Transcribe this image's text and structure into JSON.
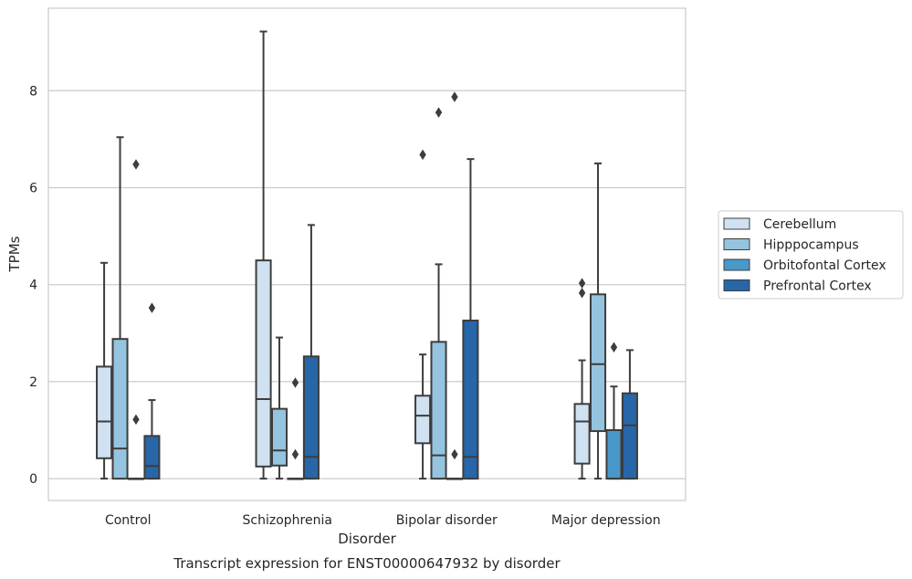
{
  "chart_data": {
    "type": "box",
    "title": "Transcript expression for ENST00000647932 by disorder",
    "xlabel": "Disorder",
    "ylabel": "TPMs",
    "ylim": [
      -0.45,
      9.7
    ],
    "yticks": [
      0,
      2,
      4,
      6,
      8
    ],
    "grid": "horizontal",
    "legend_position": "right",
    "categories": [
      "Control",
      "Schizophrenia",
      "Bipolar disorder",
      "Major depression"
    ],
    "series": [
      {
        "name": "Cerebellum",
        "color": "#d0e1f2",
        "boxes": [
          {
            "whisker_low": 0,
            "q1": 0.42,
            "median": 1.18,
            "q3": 2.31,
            "whisker_high": 4.45,
            "outliers": []
          },
          {
            "whisker_low": 0,
            "q1": 0.25,
            "median": 1.64,
            "q3": 4.5,
            "whisker_high": 9.22,
            "outliers": []
          },
          {
            "whisker_low": 0,
            "q1": 0.73,
            "median": 1.3,
            "q3": 1.71,
            "whisker_high": 2.56,
            "outliers": [
              6.68
            ]
          },
          {
            "whisker_low": 0,
            "q1": 0.31,
            "median": 1.18,
            "q3": 1.54,
            "whisker_high": 2.44,
            "outliers": [
              3.83,
              4.03
            ]
          }
        ]
      },
      {
        "name": "Hipppocampus",
        "color": "#94c4df",
        "boxes": [
          {
            "whisker_low": 0,
            "q1": 0,
            "median": 0.62,
            "q3": 2.88,
            "whisker_high": 7.04,
            "outliers": []
          },
          {
            "whisker_low": 0,
            "q1": 0.27,
            "median": 0.58,
            "q3": 1.44,
            "whisker_high": 2.91,
            "outliers": []
          },
          {
            "whisker_low": 0,
            "q1": 0,
            "median": 0.48,
            "q3": 2.82,
            "whisker_high": 4.42,
            "outliers": [
              7.55
            ]
          },
          {
            "whisker_low": 0,
            "q1": 0.98,
            "median": 2.36,
            "q3": 3.8,
            "whisker_high": 6.5,
            "outliers": []
          }
        ]
      },
      {
        "name": "Orbitofontal Cortex",
        "color": "#4a98c9",
        "boxes": [
          {
            "whisker_low": 0,
            "q1": 0,
            "median": 0,
            "q3": 0,
            "whisker_high": 0,
            "outliers": [
              1.22,
              6.48
            ]
          },
          {
            "whisker_low": 0,
            "q1": 0,
            "median": 0,
            "q3": 0,
            "whisker_high": 0,
            "outliers": [
              0.5,
              1.98
            ]
          },
          {
            "whisker_low": 0,
            "q1": 0,
            "median": 0,
            "q3": 0,
            "whisker_high": 0,
            "outliers": [
              0.5,
              7.87
            ]
          },
          {
            "whisker_low": 0,
            "q1": 0,
            "median": 0,
            "q3": 1.0,
            "whisker_high": 1.9,
            "outliers": [
              2.71
            ]
          }
        ]
      },
      {
        "name": "Prefrontal Cortex",
        "color": "#2766a8",
        "boxes": [
          {
            "whisker_low": 0,
            "q1": 0,
            "median": 0.26,
            "q3": 0.88,
            "whisker_high": 1.62,
            "outliers": [
              3.52
            ]
          },
          {
            "whisker_low": 0,
            "q1": 0,
            "median": 0.45,
            "q3": 2.52,
            "whisker_high": 5.23,
            "outliers": []
          },
          {
            "whisker_low": 0,
            "q1": 0,
            "median": 0.45,
            "q3": 3.26,
            "whisker_high": 6.59,
            "outliers": []
          },
          {
            "whisker_low": 0,
            "q1": 0,
            "median": 1.1,
            "q3": 1.76,
            "whisker_high": 2.65,
            "outliers": []
          }
        ]
      }
    ]
  }
}
